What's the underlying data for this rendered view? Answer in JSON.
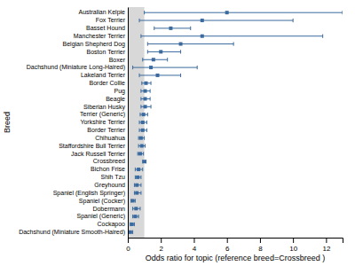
{
  "chart_data": {
    "type": "forest",
    "categories": [
      "Australian Kelpie",
      "Fox Terrier",
      "Basset Hound",
      "Manchester Terrier",
      "Belgian Shepherd Dog",
      "Boston Terrier",
      "Boxer",
      "Dachshund (Miniature Long-Haired)",
      "Lakeland Terrier",
      "Border Collie",
      "Pug",
      "Beagle",
      "Siberian Husky",
      "Terrier (Generic)",
      "Yorkshire Terrier",
      "Border Terrier",
      "Chihuahua",
      "Staffordshire Bull Terrier",
      "Jack Russell Terrier",
      "Crossbreed",
      "Bichon Frise",
      "Shih Tzu",
      "Greyhound",
      "Spaniel (English Springer)",
      "Spaniel (Cocker)",
      "Dobermann",
      "Spaniel (Generic)",
      "Cockapoo",
      "Dachshund (Miniature Smooth-Haired)"
    ],
    "values": [
      6.0,
      4.5,
      2.6,
      4.5,
      3.2,
      2.0,
      1.55,
      1.4,
      1.8,
      1.1,
      1.05,
      1.05,
      1.05,
      0.95,
      0.9,
      0.9,
      0.8,
      0.85,
      0.75,
      1.0,
      0.65,
      0.6,
      0.55,
      0.55,
      0.3,
      0.5,
      0.45,
      0.25,
      0.15
    ],
    "ci_low": [
      1.0,
      0.7,
      1.6,
      0.8,
      1.2,
      1.2,
      0.9,
      0.3,
      0.7,
      0.85,
      0.8,
      0.8,
      0.8,
      0.75,
      0.7,
      0.7,
      0.65,
      0.65,
      0.6,
      0.9,
      0.45,
      0.45,
      0.4,
      0.4,
      0.2,
      0.3,
      0.3,
      0.15,
      0.05
    ],
    "ci_high": [
      13.0,
      10.0,
      3.8,
      11.8,
      6.4,
      3.2,
      2.4,
      4.2,
      3.2,
      1.4,
      1.35,
      1.35,
      1.4,
      1.2,
      1.15,
      1.15,
      1.0,
      1.05,
      0.95,
      1.1,
      0.9,
      0.8,
      0.8,
      0.8,
      0.45,
      0.75,
      0.65,
      0.4,
      0.3
    ],
    "color": "#3a6a9e",
    "shaded_span": {
      "x": [
        0,
        1
      ],
      "color": "#d8d8d8"
    },
    "xlabel": "Odds ratio for topic (reference breed=Crossbreed )",
    "ylabel": "Breed",
    "xlim": [
      0,
      13
    ],
    "xticks": [
      0,
      2,
      4,
      6,
      8,
      10,
      12
    ],
    "grid": false
  }
}
